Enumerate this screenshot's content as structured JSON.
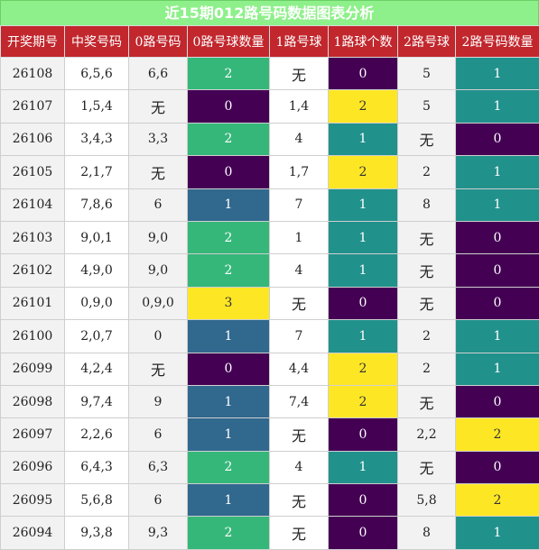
{
  "title": "近15期012路号码数据图表分析",
  "headers": [
    "开奖期号",
    "中奖号码",
    "0路号码",
    "0路号球数量",
    "1路号球",
    "1路球个数",
    "2路号球",
    "2路号码数量"
  ],
  "rows": [
    [
      "26108",
      "6,5,6",
      "6,6",
      "2",
      "无",
      "0",
      "5",
      "1"
    ],
    [
      "26107",
      "1,5,4",
      "无",
      "0",
      "1,4",
      "2",
      "5",
      "1"
    ],
    [
      "26106",
      "3,4,3",
      "3,3",
      "2",
      "4",
      "1",
      "无",
      "0"
    ],
    [
      "26105",
      "2,1,7",
      "无",
      "0",
      "1,7",
      "2",
      "2",
      "1"
    ],
    [
      "26104",
      "7,8,6",
      "6",
      "1",
      "7",
      "1",
      "8",
      "1"
    ],
    [
      "26103",
      "9,0,1",
      "9,0",
      "2",
      "1",
      "1",
      "无",
      "0"
    ],
    [
      "26102",
      "4,9,0",
      "9,0",
      "2",
      "4",
      "1",
      "无",
      "0"
    ],
    [
      "26101",
      "0,9,0",
      "0,9,0",
      "3",
      "无",
      "0",
      "无",
      "0"
    ],
    [
      "26100",
      "2,0,7",
      "0",
      "1",
      "7",
      "1",
      "2",
      "1"
    ],
    [
      "26099",
      "4,2,4",
      "无",
      "0",
      "4,4",
      "2",
      "2",
      "1"
    ],
    [
      "26098",
      "9,7,4",
      "9",
      "1",
      "7,4",
      "2",
      "无",
      "0"
    ],
    [
      "26097",
      "2,2,6",
      "6",
      "1",
      "无",
      "0",
      "2,2",
      "2"
    ],
    [
      "26096",
      "6,4,3",
      "6,3",
      "2",
      "4",
      "1",
      "无",
      "0"
    ],
    [
      "26095",
      "5,6,8",
      "6",
      "1",
      "无",
      "0",
      "5,8",
      "2"
    ],
    [
      "26094",
      "9,3,8",
      "9,3",
      "2",
      "无",
      "0",
      "8",
      "1"
    ]
  ],
  "colors": {
    "title_bg": "#8ef08a",
    "header_bg": "#c1272d",
    "count_0": "#440154",
    "count_1_zero_route": "#31688e",
    "count_1": "#21918c",
    "count_2_zero_route": "#35b779",
    "count_2": "#fde725",
    "count_3": "#fde725"
  }
}
